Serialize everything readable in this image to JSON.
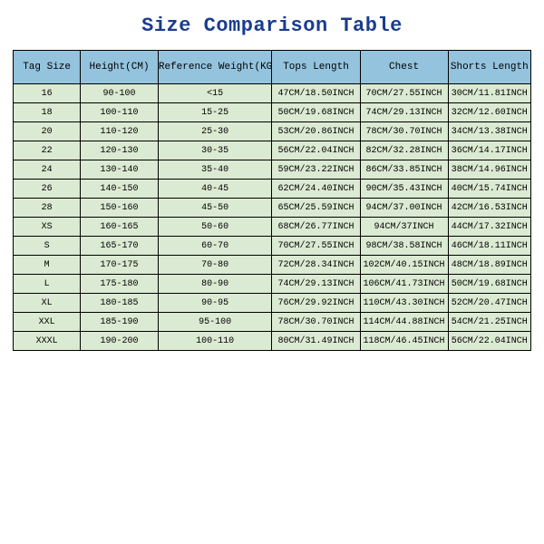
{
  "title": "Size Comparison Table",
  "table": {
    "header_bg": "#94c3de",
    "row_bg": "#dbead2",
    "border_color": "#000000",
    "title_color": "#1b3c8c",
    "header_fontsize": 11,
    "cell_fontsize": 10,
    "column_widths_pct": [
      13,
      15,
      22,
      17,
      17,
      16
    ],
    "columns": [
      "Tag Size",
      "Height(CM)",
      "Reference Weight(KG)",
      "Tops Length",
      "Chest",
      "Shorts Length"
    ],
    "rows": [
      [
        "16",
        "90-100",
        "<15",
        "47CM/18.50INCH",
        "70CM/27.55INCH",
        "30CM/11.81INCH"
      ],
      [
        "18",
        "100-110",
        "15-25",
        "50CM/19.68INCH",
        "74CM/29.13INCH",
        "32CM/12.60INCH"
      ],
      [
        "20",
        "110-120",
        "25-30",
        "53CM/20.86INCH",
        "78CM/30.70INCH",
        "34CM/13.38INCH"
      ],
      [
        "22",
        "120-130",
        "30-35",
        "56CM/22.04INCH",
        "82CM/32.28INCH",
        "36CM/14.17INCH"
      ],
      [
        "24",
        "130-140",
        "35-40",
        "59CM/23.22INCH",
        "86CM/33.85INCH",
        "38CM/14.96INCH"
      ],
      [
        "26",
        "140-150",
        "40-45",
        "62CM/24.40INCH",
        "90CM/35.43INCH",
        "40CM/15.74INCH"
      ],
      [
        "28",
        "150-160",
        "45-50",
        "65CM/25.59INCH",
        "94CM/37.00INCH",
        "42CM/16.53INCH"
      ],
      [
        "XS",
        "160-165",
        "50-60",
        "68CM/26.77INCH",
        "94CM/37INCH",
        "44CM/17.32INCH"
      ],
      [
        "S",
        "165-170",
        "60-70",
        "70CM/27.55INCH",
        "98CM/38.58INCH",
        "46CM/18.11INCH"
      ],
      [
        "M",
        "170-175",
        "70-80",
        "72CM/28.34INCH",
        "102CM/40.15INCH",
        "48CM/18.89INCH"
      ],
      [
        "L",
        "175-180",
        "80-90",
        "74CM/29.13INCH",
        "106CM/41.73INCH",
        "50CM/19.68INCH"
      ],
      [
        "XL",
        "180-185",
        "90-95",
        "76CM/29.92INCH",
        "110CM/43.30INCH",
        "52CM/20.47INCH"
      ],
      [
        "XXL",
        "185-190",
        "95-100",
        "78CM/30.70INCH",
        "114CM/44.88INCH",
        "54CM/21.25INCH"
      ],
      [
        "XXXL",
        "190-200",
        "100-110",
        "80CM/31.49INCH",
        "118CM/46.45INCH",
        "56CM/22.04INCH"
      ]
    ]
  }
}
